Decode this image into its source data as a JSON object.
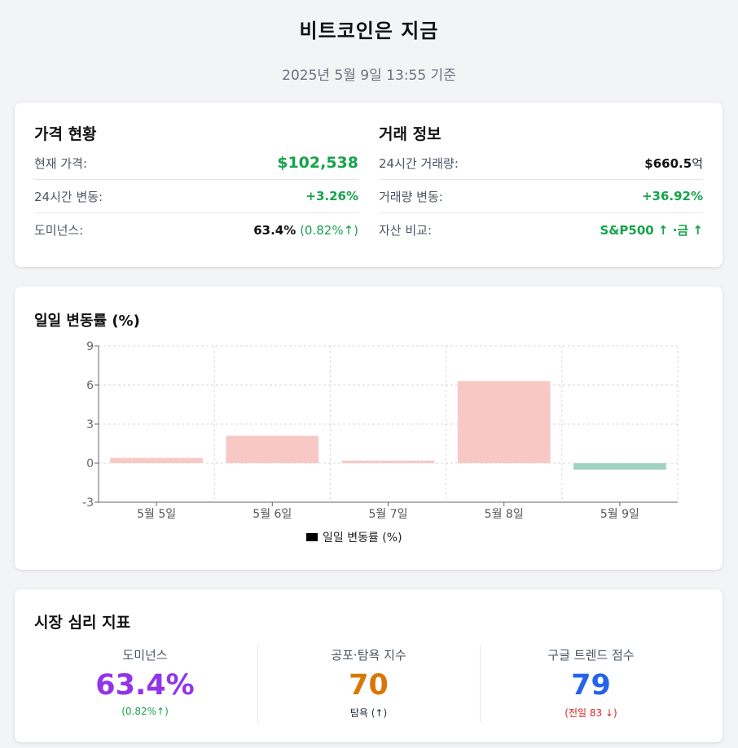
{
  "header": {
    "title": "비트코인은 지금",
    "subtitle": "2025년 5월 9일 13:55 기준"
  },
  "price_status": {
    "title": "가격 현황",
    "rows": [
      {
        "label": "현재 가격:",
        "value": "$102,538"
      },
      {
        "label": "24시간 변동:",
        "value": "+3.26%"
      },
      {
        "label": "도미넌스:",
        "value": "63.4%",
        "value_extra": "(0.82%↑)"
      }
    ]
  },
  "trade_info": {
    "title": "거래 정보",
    "rows": [
      {
        "label": "24시간 거래량:",
        "value": "$660.5",
        "value_suffix": "억"
      },
      {
        "label": "거래량 변동:",
        "value": "+36.92%"
      },
      {
        "label": "자산 비교:",
        "value": "S&P500 ↑ ·금 ↑"
      }
    ]
  },
  "chart_section": {
    "title": "일일 변동률 (%)"
  },
  "chart_data": {
    "type": "bar",
    "categories": [
      "5월 5일",
      "5월 6일",
      "5월 7일",
      "5월 8일",
      "5월 9일"
    ],
    "series": [
      {
        "name": "일일 변동률 (%)",
        "values": [
          0.4,
          2.1,
          0.2,
          6.3,
          -0.5
        ]
      }
    ],
    "ylim": [
      -3,
      9
    ],
    "yticks": [
      "-3",
      "0",
      "3",
      "6",
      "9"
    ],
    "grid": true,
    "legend_position": "bottom",
    "colors": {
      "positive": "#f8c9c4",
      "negative": "#9fd3c0",
      "legend": "#000000"
    }
  },
  "sentiment": {
    "title": "시장 심리 지표",
    "items": [
      {
        "label": "도미넌스",
        "value": "63.4%",
        "sub": "(0.82%↑)"
      },
      {
        "label": "공포·탐욕 지수",
        "value": "70",
        "sub": "탐욕 (↑)"
      },
      {
        "label": "구글 트렌드 점수",
        "value": "79",
        "sub": "(전일 83 ↓)"
      }
    ]
  },
  "colors": {
    "green": "#16a34a",
    "purple": "#9333ea",
    "orange": "#d97706",
    "blue": "#2563eb",
    "red": "#dc2626"
  }
}
